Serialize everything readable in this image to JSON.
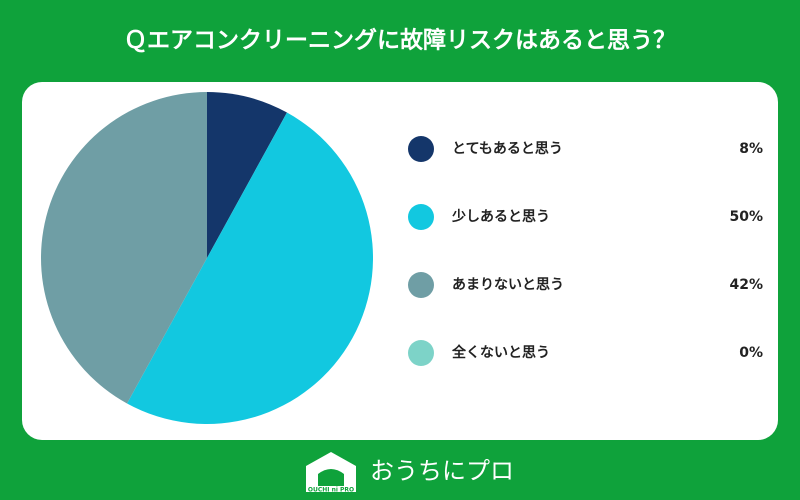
{
  "chart_data": {
    "type": "pie",
    "title": "Ｑエアコンクリーニングに故障リスクはあると思う？",
    "categories": [
      "とてもあると思う",
      "少しあると思う",
      "あまりないと思う",
      "全くないと思う"
    ],
    "values": [
      8,
      50,
      42,
      0
    ],
    "value_labels": [
      "8%",
      "50%",
      "42%",
      "0%"
    ],
    "colors": [
      "#14366a",
      "#12c8e0",
      "#6f9ea5",
      "#7dd3c8"
    ]
  },
  "footer": {
    "brand": "おうちにプロ",
    "logo_text": "OUCHI ni PRO"
  }
}
